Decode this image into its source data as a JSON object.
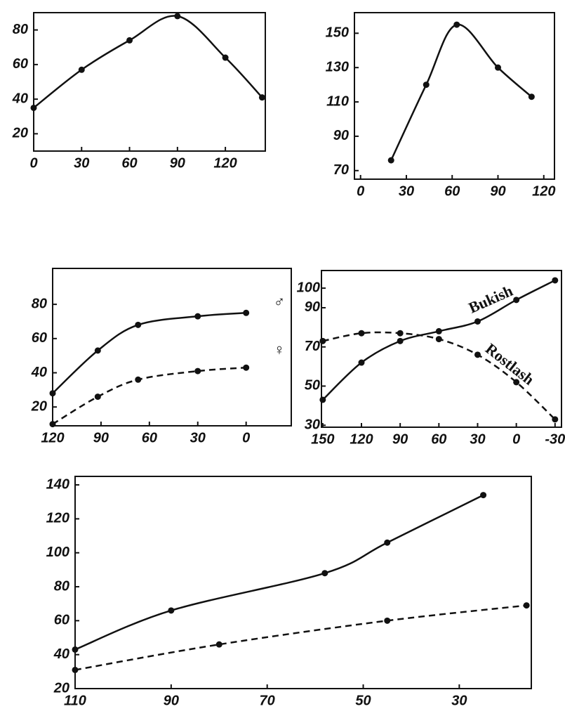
{
  "chart_data": [
    {
      "type": "line",
      "x": [
        0,
        30,
        60,
        90,
        120,
        143
      ],
      "series": [
        {
          "color": "#111",
          "style": "solid",
          "values": [
            35,
            57,
            74,
            88,
            64,
            41
          ]
        }
      ],
      "xlim": [
        0,
        145
      ],
      "ylim": [
        10,
        90
      ],
      "xticks": [
        0,
        30,
        60,
        90,
        120
      ],
      "yticks": [
        20,
        40,
        60,
        80
      ]
    },
    {
      "type": "line",
      "x": [
        20,
        43,
        63,
        90,
        112
      ],
      "series": [
        {
          "color": "#111",
          "style": "solid",
          "values": [
            76,
            120,
            155,
            130,
            113
          ]
        }
      ],
      "xlim": [
        -4,
        127
      ],
      "ylim": [
        65,
        162
      ],
      "xticks": [
        0,
        30,
        60,
        90,
        120
      ],
      "yticks": [
        70,
        90,
        110,
        130,
        150
      ]
    },
    {
      "type": "line",
      "x": [
        120,
        92,
        67,
        30,
        0
      ],
      "series": [
        {
          "name": "♂",
          "color": "#111",
          "style": "solid",
          "values": [
            28,
            53,
            68,
            73,
            75
          ]
        },
        {
          "name": "♀",
          "color": "#111",
          "style": "dashed",
          "values": [
            10,
            26,
            36,
            41,
            43
          ]
        }
      ],
      "xlim": [
        120,
        -28
      ],
      "ylim": [
        9,
        101
      ],
      "xticks": [
        120,
        90,
        60,
        30,
        0
      ],
      "yticks": [
        20,
        40,
        60,
        80
      ]
    },
    {
      "type": "line",
      "x": [
        150,
        120,
        90,
        60,
        30,
        0,
        -30
      ],
      "series": [
        {
          "name": "Bukish",
          "color": "#111",
          "style": "solid",
          "values": [
            43,
            62,
            73,
            78,
            83,
            94,
            104
          ]
        },
        {
          "name": "Rostlash",
          "color": "#111",
          "style": "dashed",
          "values": [
            73,
            77,
            77,
            74,
            66,
            52,
            33
          ]
        }
      ],
      "xlim": [
        151,
        -35
      ],
      "ylim": [
        29,
        109
      ],
      "xticks": [
        150,
        120,
        90,
        60,
        30,
        0,
        -30
      ],
      "yticks": [
        30,
        50,
        70,
        90,
        100
      ]
    },
    {
      "type": "line",
      "x": [
        110,
        90,
        80,
        58,
        45,
        25,
        16
      ],
      "series": [
        {
          "color": "#111",
          "style": "solid",
          "values": [
            43,
            66,
            null,
            88,
            106,
            134,
            null
          ]
        },
        {
          "color": "#111",
          "style": "dashed",
          "values": [
            31,
            null,
            46,
            null,
            60,
            null,
            69
          ]
        }
      ],
      "xlim": [
        110,
        15
      ],
      "ylim": [
        20,
        145
      ],
      "xticks": [
        110,
        90,
        70,
        50,
        30
      ],
      "yticks": [
        20,
        40,
        60,
        80,
        100,
        120,
        140
      ]
    }
  ]
}
